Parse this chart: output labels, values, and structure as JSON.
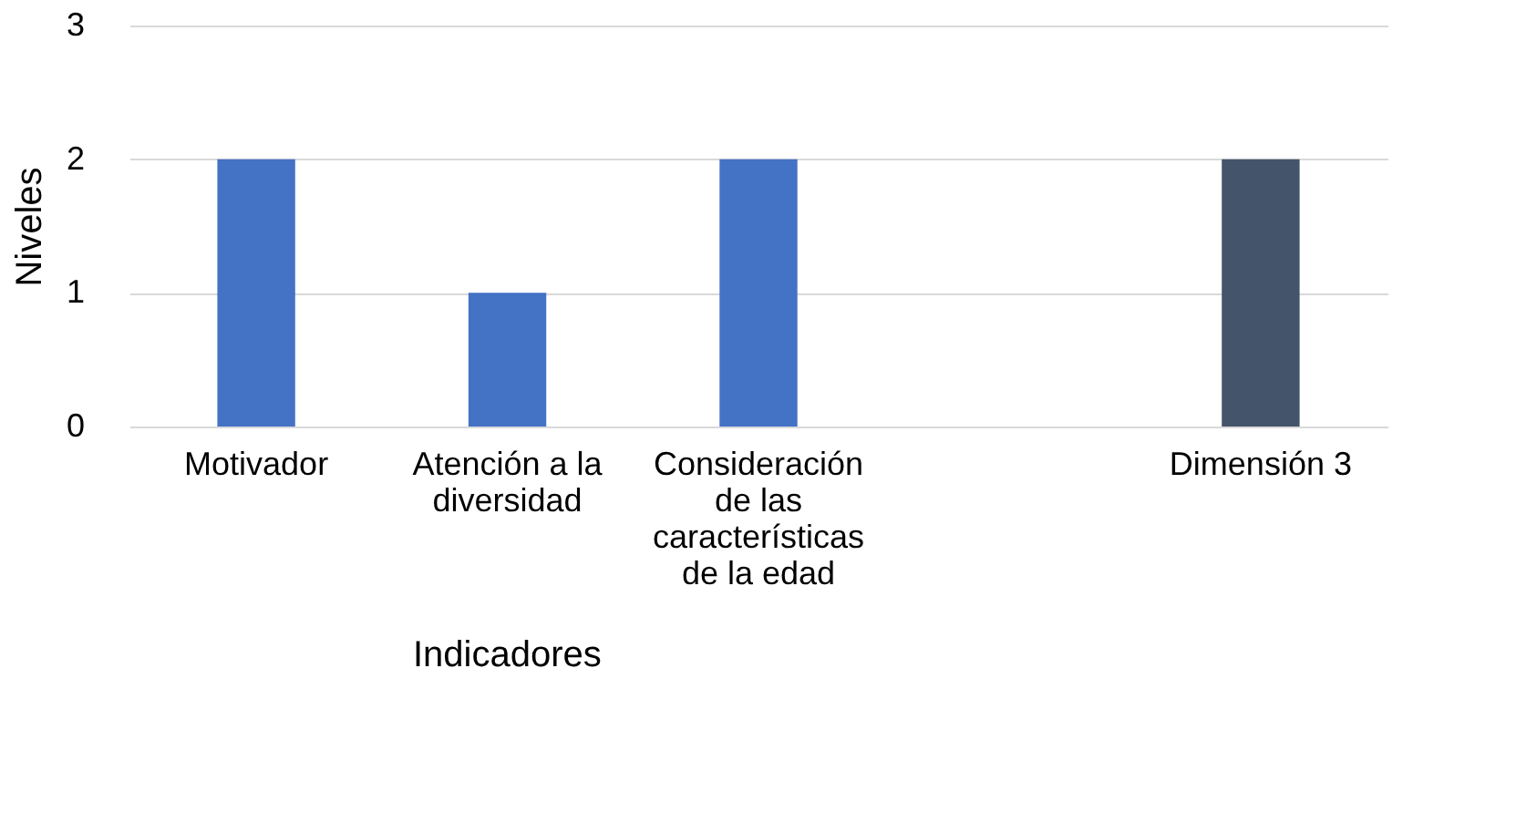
{
  "chart_data": {
    "type": "bar",
    "xlabel": "Indicadores",
    "ylabel": "Niveles",
    "categories": [
      "Motivador",
      "Atención a la diversidad",
      "Consideración de las características de la edad",
      null,
      "Dimensión 3"
    ],
    "values": [
      2,
      1,
      2,
      null,
      2
    ],
    "colors": [
      "#4472c4",
      "#4472c4",
      "#4472c4",
      "#4472c4",
      "#44546a"
    ],
    "ylim": [
      0,
      3
    ],
    "yticks": [
      0,
      1,
      2,
      3
    ],
    "grid": "y"
  }
}
